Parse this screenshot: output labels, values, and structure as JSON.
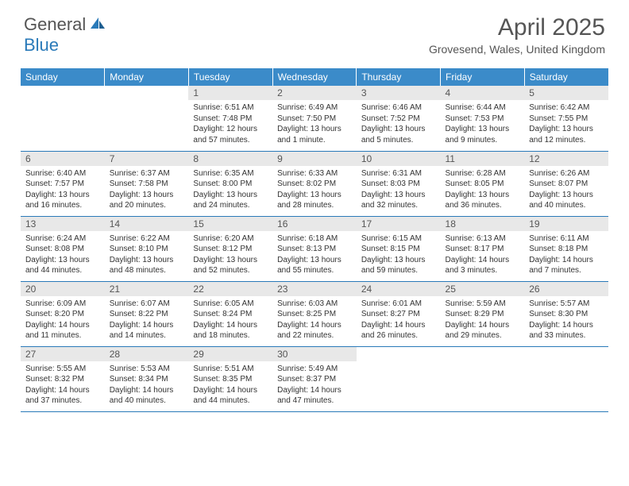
{
  "brand": {
    "part1": "General",
    "part2": "Blue"
  },
  "title": "April 2025",
  "location": "Grovesend, Wales, United Kingdom",
  "colors": {
    "header_bg": "#3b8bc9",
    "header_text": "#ffffff",
    "daynum_bg": "#e8e8e8",
    "border": "#2a7ab9",
    "brand_blue": "#2a7ab9",
    "text": "#333333"
  },
  "dayHeaders": [
    "Sunday",
    "Monday",
    "Tuesday",
    "Wednesday",
    "Thursday",
    "Friday",
    "Saturday"
  ],
  "weeks": [
    [
      null,
      null,
      {
        "n": "1",
        "sr": "Sunrise: 6:51 AM",
        "ss": "Sunset: 7:48 PM",
        "dl1": "Daylight: 12 hours",
        "dl2": "and 57 minutes."
      },
      {
        "n": "2",
        "sr": "Sunrise: 6:49 AM",
        "ss": "Sunset: 7:50 PM",
        "dl1": "Daylight: 13 hours",
        "dl2": "and 1 minute."
      },
      {
        "n": "3",
        "sr": "Sunrise: 6:46 AM",
        "ss": "Sunset: 7:52 PM",
        "dl1": "Daylight: 13 hours",
        "dl2": "and 5 minutes."
      },
      {
        "n": "4",
        "sr": "Sunrise: 6:44 AM",
        "ss": "Sunset: 7:53 PM",
        "dl1": "Daylight: 13 hours",
        "dl2": "and 9 minutes."
      },
      {
        "n": "5",
        "sr": "Sunrise: 6:42 AM",
        "ss": "Sunset: 7:55 PM",
        "dl1": "Daylight: 13 hours",
        "dl2": "and 12 minutes."
      }
    ],
    [
      {
        "n": "6",
        "sr": "Sunrise: 6:40 AM",
        "ss": "Sunset: 7:57 PM",
        "dl1": "Daylight: 13 hours",
        "dl2": "and 16 minutes."
      },
      {
        "n": "7",
        "sr": "Sunrise: 6:37 AM",
        "ss": "Sunset: 7:58 PM",
        "dl1": "Daylight: 13 hours",
        "dl2": "and 20 minutes."
      },
      {
        "n": "8",
        "sr": "Sunrise: 6:35 AM",
        "ss": "Sunset: 8:00 PM",
        "dl1": "Daylight: 13 hours",
        "dl2": "and 24 minutes."
      },
      {
        "n": "9",
        "sr": "Sunrise: 6:33 AM",
        "ss": "Sunset: 8:02 PM",
        "dl1": "Daylight: 13 hours",
        "dl2": "and 28 minutes."
      },
      {
        "n": "10",
        "sr": "Sunrise: 6:31 AM",
        "ss": "Sunset: 8:03 PM",
        "dl1": "Daylight: 13 hours",
        "dl2": "and 32 minutes."
      },
      {
        "n": "11",
        "sr": "Sunrise: 6:28 AM",
        "ss": "Sunset: 8:05 PM",
        "dl1": "Daylight: 13 hours",
        "dl2": "and 36 minutes."
      },
      {
        "n": "12",
        "sr": "Sunrise: 6:26 AM",
        "ss": "Sunset: 8:07 PM",
        "dl1": "Daylight: 13 hours",
        "dl2": "and 40 minutes."
      }
    ],
    [
      {
        "n": "13",
        "sr": "Sunrise: 6:24 AM",
        "ss": "Sunset: 8:08 PM",
        "dl1": "Daylight: 13 hours",
        "dl2": "and 44 minutes."
      },
      {
        "n": "14",
        "sr": "Sunrise: 6:22 AM",
        "ss": "Sunset: 8:10 PM",
        "dl1": "Daylight: 13 hours",
        "dl2": "and 48 minutes."
      },
      {
        "n": "15",
        "sr": "Sunrise: 6:20 AM",
        "ss": "Sunset: 8:12 PM",
        "dl1": "Daylight: 13 hours",
        "dl2": "and 52 minutes."
      },
      {
        "n": "16",
        "sr": "Sunrise: 6:18 AM",
        "ss": "Sunset: 8:13 PM",
        "dl1": "Daylight: 13 hours",
        "dl2": "and 55 minutes."
      },
      {
        "n": "17",
        "sr": "Sunrise: 6:15 AM",
        "ss": "Sunset: 8:15 PM",
        "dl1": "Daylight: 13 hours",
        "dl2": "and 59 minutes."
      },
      {
        "n": "18",
        "sr": "Sunrise: 6:13 AM",
        "ss": "Sunset: 8:17 PM",
        "dl1": "Daylight: 14 hours",
        "dl2": "and 3 minutes."
      },
      {
        "n": "19",
        "sr": "Sunrise: 6:11 AM",
        "ss": "Sunset: 8:18 PM",
        "dl1": "Daylight: 14 hours",
        "dl2": "and 7 minutes."
      }
    ],
    [
      {
        "n": "20",
        "sr": "Sunrise: 6:09 AM",
        "ss": "Sunset: 8:20 PM",
        "dl1": "Daylight: 14 hours",
        "dl2": "and 11 minutes."
      },
      {
        "n": "21",
        "sr": "Sunrise: 6:07 AM",
        "ss": "Sunset: 8:22 PM",
        "dl1": "Daylight: 14 hours",
        "dl2": "and 14 minutes."
      },
      {
        "n": "22",
        "sr": "Sunrise: 6:05 AM",
        "ss": "Sunset: 8:24 PM",
        "dl1": "Daylight: 14 hours",
        "dl2": "and 18 minutes."
      },
      {
        "n": "23",
        "sr": "Sunrise: 6:03 AM",
        "ss": "Sunset: 8:25 PM",
        "dl1": "Daylight: 14 hours",
        "dl2": "and 22 minutes."
      },
      {
        "n": "24",
        "sr": "Sunrise: 6:01 AM",
        "ss": "Sunset: 8:27 PM",
        "dl1": "Daylight: 14 hours",
        "dl2": "and 26 minutes."
      },
      {
        "n": "25",
        "sr": "Sunrise: 5:59 AM",
        "ss": "Sunset: 8:29 PM",
        "dl1": "Daylight: 14 hours",
        "dl2": "and 29 minutes."
      },
      {
        "n": "26",
        "sr": "Sunrise: 5:57 AM",
        "ss": "Sunset: 8:30 PM",
        "dl1": "Daylight: 14 hours",
        "dl2": "and 33 minutes."
      }
    ],
    [
      {
        "n": "27",
        "sr": "Sunrise: 5:55 AM",
        "ss": "Sunset: 8:32 PM",
        "dl1": "Daylight: 14 hours",
        "dl2": "and 37 minutes."
      },
      {
        "n": "28",
        "sr": "Sunrise: 5:53 AM",
        "ss": "Sunset: 8:34 PM",
        "dl1": "Daylight: 14 hours",
        "dl2": "and 40 minutes."
      },
      {
        "n": "29",
        "sr": "Sunrise: 5:51 AM",
        "ss": "Sunset: 8:35 PM",
        "dl1": "Daylight: 14 hours",
        "dl2": "and 44 minutes."
      },
      {
        "n": "30",
        "sr": "Sunrise: 5:49 AM",
        "ss": "Sunset: 8:37 PM",
        "dl1": "Daylight: 14 hours",
        "dl2": "and 47 minutes."
      },
      null,
      null,
      null
    ]
  ]
}
